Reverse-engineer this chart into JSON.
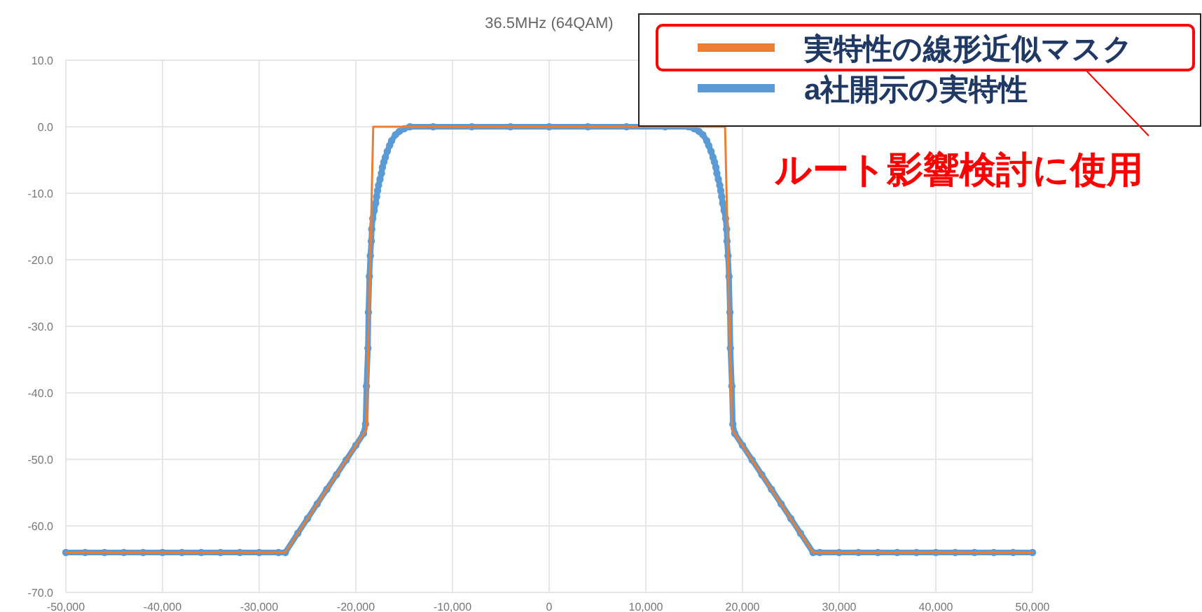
{
  "chart_data": {
    "type": "line",
    "title": "36.5MHz (64QAM)",
    "xlim": [
      -50000,
      50000
    ],
    "ylim": [
      -70,
      10
    ],
    "xticks": [
      {
        "value": -50000,
        "label": "-50,000"
      },
      {
        "value": -40000,
        "label": "-40,000"
      },
      {
        "value": -30000,
        "label": "-30,000"
      },
      {
        "value": -20000,
        "label": "-20,000"
      },
      {
        "value": -10000,
        "label": "-10,000"
      },
      {
        "value": 0,
        "label": "0"
      },
      {
        "value": 10000,
        "label": "10,000"
      },
      {
        "value": 20000,
        "label": "20,000"
      },
      {
        "value": 30000,
        "label": "30,000"
      },
      {
        "value": 40000,
        "label": "40,000"
      },
      {
        "value": 50000,
        "label": "50,000"
      }
    ],
    "yticks": [
      {
        "value": 10,
        "label": "10.0"
      },
      {
        "value": 0,
        "label": "0.0"
      },
      {
        "value": -10,
        "label": "-10.0"
      },
      {
        "value": -20,
        "label": "-20.0"
      },
      {
        "value": -30,
        "label": "-30.0"
      },
      {
        "value": -40,
        "label": "-40.0"
      },
      {
        "value": -50,
        "label": "-50.0"
      },
      {
        "value": -60,
        "label": "-60.0"
      },
      {
        "value": -70,
        "label": "-70.0"
      }
    ],
    "grid": true,
    "legend": "top right",
    "annotations": [
      "ルート影響検討に使用"
    ],
    "series": [
      {
        "name": "実特性の線形近似マスク",
        "color": "#ed7d31",
        "marker": "none",
        "x": [
          -50000,
          -27300,
          -18900,
          -18200,
          18200,
          18900,
          27300,
          50000
        ],
        "values": [
          -64,
          -64,
          -45.5,
          0,
          0,
          -45.5,
          -64,
          -64
        ]
      },
      {
        "name": "a社開示の実特性",
        "color": "#5b9bd5",
        "marker": "circle",
        "x": [
          -50000,
          -48000,
          -46000,
          -44000,
          -42000,
          -40000,
          -38000,
          -36000,
          -34000,
          -32000,
          -30000,
          -28000,
          -27300,
          -26000,
          -25000,
          -24000,
          -23000,
          -22000,
          -21000,
          -20000,
          -19200,
          -19000,
          -18900,
          -18750,
          -18700,
          -18600,
          -18500,
          -18400,
          -18350,
          -18250,
          -18100,
          -17950,
          -17850,
          -17750,
          -17650,
          -17500,
          -17350,
          -17250,
          -17100,
          -16950,
          -16750,
          -16500,
          -16300,
          -15900,
          -15500,
          -15000,
          -14400,
          -12000,
          -8000,
          -4000,
          0,
          4000,
          8000,
          12000,
          14400,
          15000,
          15500,
          15900,
          16300,
          16500,
          16750,
          16950,
          17100,
          17250,
          17350,
          17500,
          17650,
          17750,
          17850,
          17950,
          18100,
          18250,
          18350,
          18400,
          18500,
          18600,
          18700,
          18750,
          18900,
          19000,
          19200,
          20000,
          21000,
          22000,
          23000,
          24000,
          25000,
          26000,
          27300,
          28000,
          30000,
          32000,
          34000,
          36000,
          38000,
          40000,
          42000,
          44000,
          46000,
          48000,
          50000
        ],
        "values": [
          -64,
          -64,
          -64,
          -64,
          -64,
          -64,
          -64,
          -64,
          -64,
          -64,
          -64,
          -64,
          -64,
          -61.1,
          -58.9,
          -56.7,
          -54.5,
          -52.3,
          -50.1,
          -47.9,
          -46.1,
          -44.7,
          -39.0,
          -33.3,
          -27.9,
          -22.5,
          -19.4,
          -17.2,
          -15.4,
          -13.8,
          -12.6,
          -11.5,
          -10.5,
          -9.6,
          -8.8,
          -7.9,
          -7.0,
          -6.1,
          -5.3,
          -4.6,
          -3.7,
          -2.8,
          -2.1,
          -1.2,
          -0.7,
          -0.3,
          0,
          0,
          0,
          0,
          0,
          0,
          0,
          0,
          0,
          -0.3,
          -0.7,
          -1.2,
          -2.1,
          -2.8,
          -3.7,
          -4.6,
          -5.3,
          -6.1,
          -7.0,
          -7.9,
          -8.8,
          -9.6,
          -10.5,
          -11.5,
          -12.6,
          -13.8,
          -15.4,
          -17.2,
          -19.4,
          -22.5,
          -27.9,
          -33.3,
          -39.0,
          -44.7,
          -46.1,
          -47.9,
          -50.1,
          -52.3,
          -54.5,
          -56.7,
          -58.9,
          -61.1,
          -64,
          -64,
          -64,
          -64,
          -64,
          -64,
          -64,
          -64,
          -64,
          -64,
          -64,
          -64,
          -64
        ]
      }
    ]
  }
}
